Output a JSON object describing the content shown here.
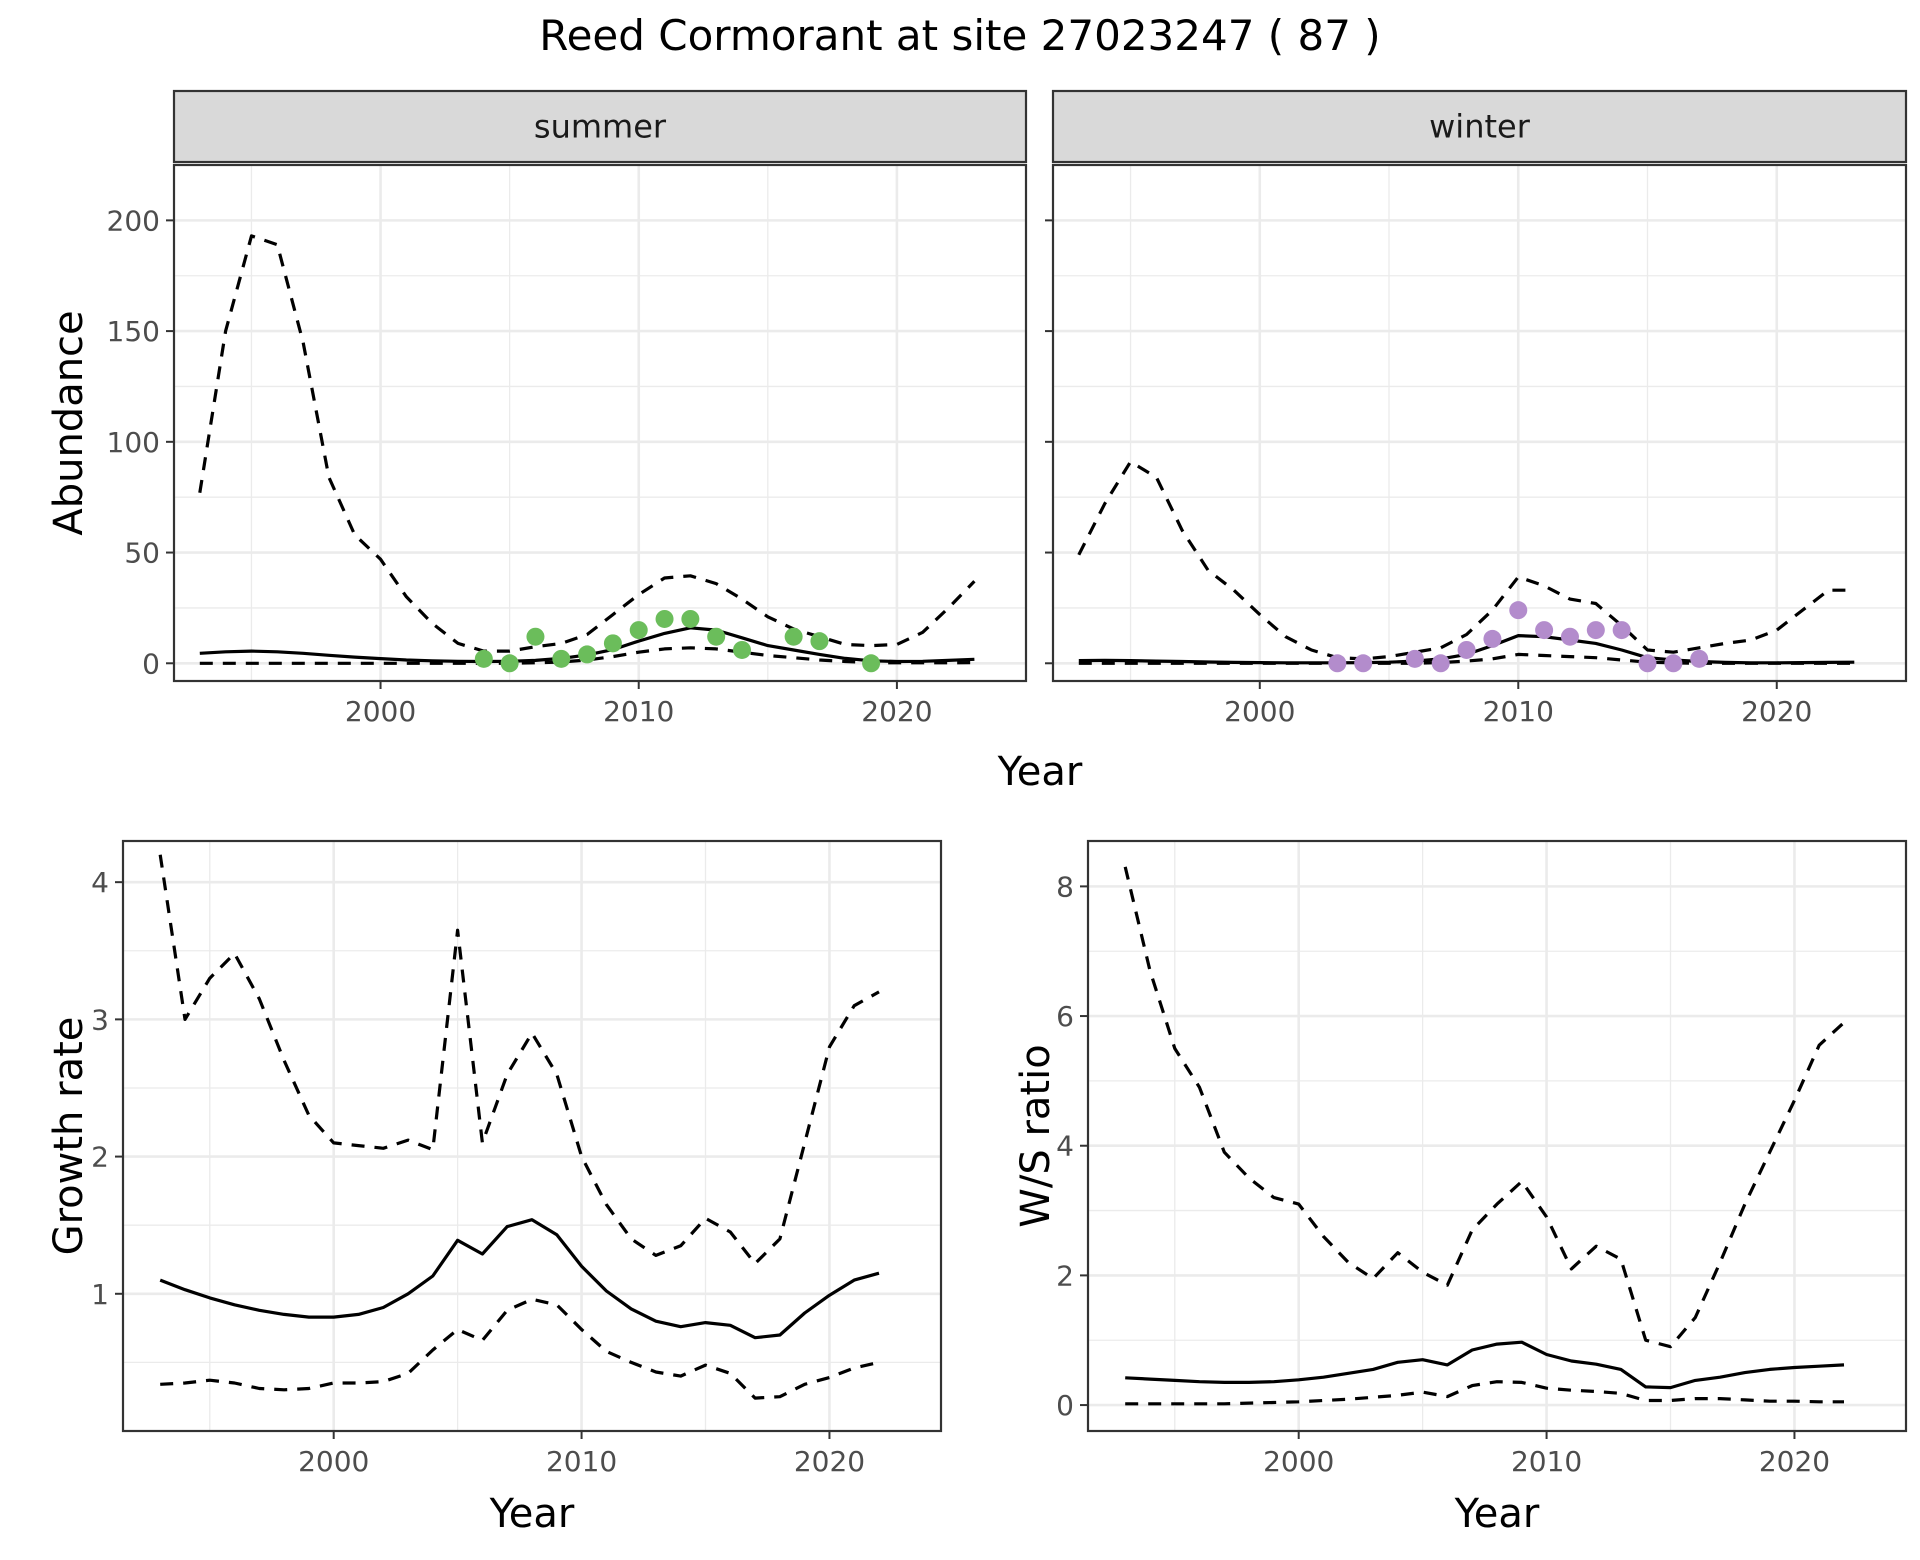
{
  "title": "Reed Cormorant at site 27023247 ( 87 )",
  "colors": {
    "summer_points": "#6bbd5b",
    "winter_points": "#b38ccc",
    "lines": "#000000",
    "strip_bg": "#d9d9d9",
    "grid": "#ebebeb"
  },
  "chart_data": [
    {
      "type": "line",
      "panel": "summer",
      "strip_label": "summer",
      "xlabel": "Year",
      "ylabel": "Abundance",
      "xlim": [
        1992,
        2025
      ],
      "ylim": [
        -8,
        225
      ],
      "x_ticks": [
        2000,
        2010,
        2020
      ],
      "y_ticks": [
        0,
        50,
        100,
        150,
        200
      ],
      "grid": true,
      "x": [
        1993,
        1994,
        1995,
        1996,
        1997,
        1998,
        1999,
        2000,
        2001,
        2002,
        2003,
        2004,
        2005,
        2006,
        2007,
        2008,
        2009,
        2010,
        2011,
        2012,
        2013,
        2014,
        2015,
        2016,
        2017,
        2018,
        2019,
        2020,
        2021,
        2022,
        2023
      ],
      "series": [
        {
          "role": "estimate",
          "dash": "solid",
          "values": [
            4.5,
            5.2,
            5.5,
            5.2,
            4.5,
            3.6,
            2.8,
            2.1,
            1.5,
            1.1,
            0.9,
            0.8,
            0.9,
            1.3,
            2.2,
            3.8,
            6.2,
            10,
            13.5,
            16,
            15,
            11.5,
            8,
            6,
            4,
            2.2,
            1.1,
            0.8,
            0.9,
            1.3,
            1.8
          ]
        },
        {
          "role": "upper",
          "dash": "dashed",
          "values": [
            77,
            150,
            193,
            189,
            145,
            84,
            58,
            47,
            30,
            18,
            9,
            5.5,
            5.5,
            7.5,
            9,
            13,
            22,
            31,
            38.5,
            39.5,
            36,
            29,
            21,
            15.5,
            12,
            8.5,
            8,
            8.5,
            14,
            25,
            37
          ]
        },
        {
          "role": "lower",
          "dash": "dashed",
          "values": [
            0,
            0,
            0,
            0,
            0,
            0,
            0,
            0,
            0,
            0,
            0,
            0,
            0,
            0.2,
            0.6,
            1.5,
            3,
            5,
            6.5,
            7,
            6.5,
            5,
            3.5,
            2.5,
            1.5,
            0.8,
            0.3,
            0.2,
            0.2,
            0.2,
            0.3
          ]
        }
      ],
      "points": {
        "x": [
          2004,
          2005,
          2006,
          2007,
          2008,
          2009,
          2010,
          2011,
          2012,
          2013,
          2014,
          2016,
          2017,
          2019
        ],
        "y": [
          2,
          0,
          12,
          2,
          4,
          9,
          15,
          20,
          20,
          12,
          6,
          12,
          10,
          0
        ]
      }
    },
    {
      "type": "line",
      "panel": "winter",
      "strip_label": "winter",
      "xlabel": "Year",
      "ylabel": "",
      "xlim": [
        1992,
        2025
      ],
      "ylim": [
        -8,
        225
      ],
      "x_ticks": [
        2000,
        2010,
        2020
      ],
      "y_ticks": [
        0,
        50,
        100,
        150,
        200
      ],
      "grid": true,
      "x": [
        1993,
        1994,
        1995,
        1996,
        1997,
        1998,
        1999,
        2000,
        2001,
        2002,
        2003,
        2004,
        2005,
        2006,
        2007,
        2008,
        2009,
        2010,
        2011,
        2012,
        2013,
        2014,
        2015,
        2016,
        2017,
        2018,
        2019,
        2020,
        2021,
        2022,
        2023
      ],
      "series": [
        {
          "role": "estimate",
          "dash": "solid",
          "values": [
            1.2,
            1.3,
            1.2,
            1,
            0.8,
            0.6,
            0.4,
            0.3,
            0.2,
            0.2,
            0.2,
            0.3,
            0.5,
            1,
            2,
            4,
            8,
            12.5,
            12,
            10.5,
            9,
            6,
            2.5,
            1.5,
            0.8,
            0.4,
            0.2,
            0.2,
            0.3,
            0.4,
            0.5
          ]
        },
        {
          "role": "upper",
          "dash": "dashed",
          "values": [
            49,
            72,
            91,
            84,
            60,
            42,
            33,
            22,
            12,
            6,
            2.5,
            2,
            3,
            5,
            7,
            13,
            24,
            39,
            35,
            29,
            27,
            17,
            6,
            5,
            7,
            9,
            10.5,
            15,
            24,
            33,
            33
          ]
        },
        {
          "role": "lower",
          "dash": "dashed",
          "values": [
            0,
            0,
            0,
            0,
            0,
            0,
            0,
            0,
            0,
            0,
            0,
            0,
            0,
            0,
            0.3,
            1,
            2,
            4,
            3.5,
            3,
            2.5,
            1.5,
            0.5,
            0.2,
            0,
            0,
            0,
            0,
            0,
            0,
            0
          ]
        }
      ],
      "points": {
        "x": [
          2003,
          2004,
          2006,
          2007,
          2008,
          2009,
          2010,
          2011,
          2012,
          2013,
          2014,
          2015,
          2016,
          2017
        ],
        "y": [
          0,
          0,
          2,
          0,
          6,
          11,
          24,
          15,
          12,
          15,
          15,
          0,
          0,
          2
        ]
      }
    },
    {
      "type": "line",
      "panel": "growth",
      "xlabel": "Year",
      "ylabel": "Growth rate",
      "xlim": [
        1991.5,
        2024.5
      ],
      "ylim": [
        0.0,
        4.3
      ],
      "x_ticks": [
        2000,
        2010,
        2020
      ],
      "y_ticks": [
        1,
        2,
        3,
        4
      ],
      "grid": true,
      "x": [
        1993,
        1994,
        1995,
        1996,
        1997,
        1998,
        1999,
        2000,
        2001,
        2002,
        2003,
        2004,
        2005,
        2006,
        2007,
        2008,
        2009,
        2010,
        2011,
        2012,
        2013,
        2014,
        2015,
        2016,
        2017,
        2018,
        2019,
        2020,
        2021,
        2022
      ],
      "series": [
        {
          "role": "estimate",
          "dash": "solid",
          "values": [
            1.1,
            1.03,
            0.97,
            0.92,
            0.88,
            0.85,
            0.83,
            0.83,
            0.85,
            0.9,
            1,
            1.13,
            1.39,
            1.29,
            1.49,
            1.54,
            1.43,
            1.2,
            1.02,
            0.89,
            0.8,
            0.76,
            0.79,
            0.77,
            0.68,
            0.7,
            0.86,
            0.99,
            1.1,
            1.15
          ]
        },
        {
          "role": "upper",
          "dash": "dashed",
          "values": [
            4.2,
            3.0,
            3.3,
            3.48,
            3.15,
            2.7,
            2.3,
            2.1,
            2.08,
            2.06,
            2.12,
            2.05,
            3.65,
            2.1,
            2.6,
            2.9,
            2.6,
            2.0,
            1.65,
            1.4,
            1.28,
            1.35,
            1.55,
            1.45,
            1.22,
            1.4,
            2.1,
            2.8,
            3.1,
            3.2
          ]
        },
        {
          "role": "lower",
          "dash": "dashed",
          "values": [
            0.34,
            0.35,
            0.37,
            0.35,
            0.31,
            0.3,
            0.31,
            0.35,
            0.35,
            0.36,
            0.42,
            0.59,
            0.74,
            0.66,
            0.88,
            0.96,
            0.92,
            0.74,
            0.58,
            0.5,
            0.43,
            0.4,
            0.48,
            0.42,
            0.24,
            0.25,
            0.34,
            0.39,
            0.46,
            0.5
          ]
        }
      ]
    },
    {
      "type": "line",
      "panel": "ratio",
      "xlabel": "Year",
      "ylabel": "W/S ratio",
      "xlim": [
        1991.5,
        2024.5
      ],
      "ylim": [
        -0.4,
        8.7
      ],
      "x_ticks": [
        2000,
        2010,
        2020
      ],
      "y_ticks": [
        0,
        2,
        4,
        6,
        8
      ],
      "grid": true,
      "x": [
        1993,
        1994,
        1995,
        1996,
        1997,
        1998,
        1999,
        2000,
        2001,
        2002,
        2003,
        2004,
        2005,
        2006,
        2007,
        2008,
        2009,
        2010,
        2011,
        2012,
        2013,
        2014,
        2015,
        2016,
        2017,
        2018,
        2019,
        2020,
        2021,
        2022
      ],
      "series": [
        {
          "role": "estimate",
          "dash": "solid",
          "values": [
            0.42,
            0.4,
            0.38,
            0.36,
            0.35,
            0.35,
            0.36,
            0.39,
            0.43,
            0.49,
            0.55,
            0.66,
            0.7,
            0.62,
            0.85,
            0.94,
            0.97,
            0.78,
            0.68,
            0.63,
            0.55,
            0.28,
            0.27,
            0.38,
            0.43,
            0.5,
            0.55,
            0.58,
            0.6,
            0.62
          ]
        },
        {
          "role": "upper",
          "dash": "dashed",
          "values": [
            8.3,
            6.7,
            5.5,
            4.9,
            3.9,
            3.5,
            3.2,
            3.1,
            2.6,
            2.2,
            1.95,
            2.35,
            2.05,
            1.85,
            2.7,
            3.1,
            3.45,
            2.9,
            2.1,
            2.45,
            2.25,
            1.0,
            0.9,
            1.35,
            2.2,
            3.1,
            3.9,
            4.7,
            5.55,
            5.9
          ]
        },
        {
          "role": "lower",
          "dash": "dashed",
          "values": [
            0.02,
            0.02,
            0.02,
            0.02,
            0.02,
            0.03,
            0.04,
            0.05,
            0.07,
            0.09,
            0.12,
            0.15,
            0.2,
            0.13,
            0.3,
            0.36,
            0.35,
            0.26,
            0.23,
            0.21,
            0.18,
            0.07,
            0.07,
            0.1,
            0.1,
            0.08,
            0.06,
            0.06,
            0.05,
            0.05
          ]
        }
      ]
    }
  ]
}
